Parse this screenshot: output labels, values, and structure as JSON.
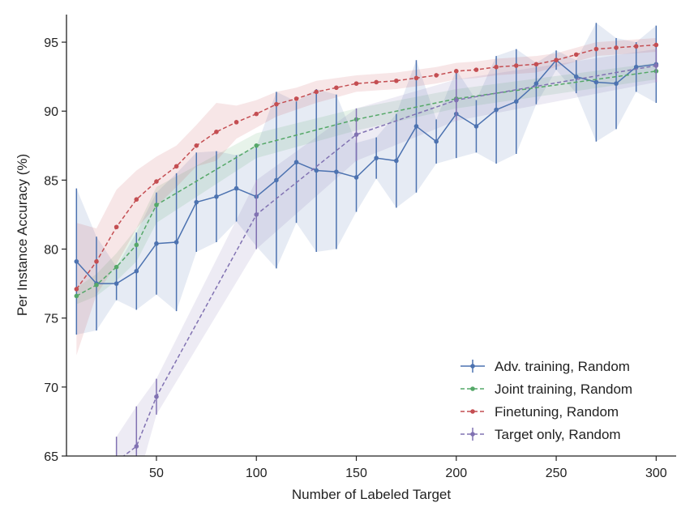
{
  "chart_data": {
    "type": "line",
    "title": "",
    "xlabel": "Number of Labeled Target",
    "ylabel": "Per Instance Accuracy (%)",
    "xlim": [
      5,
      310
    ],
    "ylim": [
      65,
      97
    ],
    "xticks": [
      50,
      100,
      150,
      200,
      250,
      300
    ],
    "yticks": [
      65,
      70,
      75,
      80,
      85,
      90,
      95
    ],
    "grid": false,
    "legend_position": "bottom-right",
    "series": [
      {
        "name": "Adv. training, Random",
        "color": "#4c72b0",
        "style": "solid-errorbars",
        "x": [
          10,
          20,
          30,
          40,
          50,
          60,
          70,
          80,
          90,
          100,
          110,
          120,
          130,
          140,
          150,
          160,
          170,
          180,
          190,
          200,
          210,
          220,
          230,
          240,
          250,
          260,
          270,
          280,
          290,
          300
        ],
        "y": [
          79.1,
          77.5,
          77.5,
          78.4,
          80.4,
          80.5,
          83.4,
          83.8,
          84.4,
          83.8,
          85.0,
          86.3,
          85.7,
          85.6,
          85.2,
          86.6,
          86.4,
          88.9,
          87.8,
          89.8,
          88.9,
          90.1,
          90.7,
          92.0,
          93.7,
          92.5,
          92.1,
          92.0,
          93.2,
          93.4
        ],
        "err": [
          5.3,
          3.4,
          1.2,
          2.8,
          3.7,
          5.0,
          3.6,
          3.3,
          2.4,
          3.6,
          6.4,
          4.4,
          5.9,
          5.6,
          2.5,
          1.5,
          3.4,
          4.8,
          1.6,
          3.2,
          1.9,
          3.9,
          3.8,
          1.5,
          0.7,
          1.2,
          4.3,
          3.3,
          1.8,
          2.8
        ]
      },
      {
        "name": "Joint training, Random",
        "color": "#55a868",
        "style": "dashed-dots",
        "x": [
          10,
          20,
          30,
          40,
          50,
          100,
          150,
          200,
          300
        ],
        "y": [
          76.6,
          77.4,
          78.7,
          80.3,
          83.2,
          87.5,
          89.4,
          90.9,
          92.9
        ],
        "err": [
          0.6,
          0.8,
          1.0,
          1.2,
          1.3,
          0.9,
          0.8,
          0.7,
          0.6
        ]
      },
      {
        "name": "Finetuning, Random",
        "color": "#c44e52",
        "style": "dashed-dots",
        "x": [
          10,
          20,
          30,
          40,
          50,
          60,
          70,
          80,
          90,
          100,
          110,
          120,
          130,
          140,
          150,
          160,
          170,
          180,
          190,
          200,
          210,
          220,
          230,
          240,
          250,
          260,
          270,
          280,
          290,
          300
        ],
        "y": [
          77.1,
          79.1,
          81.6,
          83.6,
          84.9,
          86.0,
          87.5,
          88.5,
          89.2,
          89.8,
          90.5,
          90.9,
          91.4,
          91.7,
          92.0,
          92.1,
          92.2,
          92.4,
          92.6,
          92.9,
          93.0,
          93.2,
          93.3,
          93.4,
          93.7,
          94.1,
          94.5,
          94.6,
          94.7,
          94.8
        ],
        "err": [
          4.8,
          2.4,
          2.7,
          2.1,
          1.8,
          1.5,
          1.5,
          2.1,
          1.2,
          1.0,
          0.9,
          0.8,
          0.8,
          0.7,
          0.6,
          0.6,
          0.6,
          0.6,
          0.6,
          0.6,
          0.6,
          0.6,
          0.6,
          0.6,
          0.5,
          0.5,
          0.5,
          0.5,
          0.5,
          0.5
        ]
      },
      {
        "name": "Target only, Random",
        "color": "#8172b2",
        "style": "dashed-errorbars",
        "x": [
          30,
          40,
          50,
          100,
          150,
          200,
          300
        ],
        "y": [
          64.6,
          65.7,
          69.3,
          82.5,
          88.3,
          90.8,
          93.3
        ],
        "err": [
          1.8,
          2.9,
          1.3,
          2.5,
          1.9,
          1.5,
          1.2
        ]
      }
    ]
  }
}
